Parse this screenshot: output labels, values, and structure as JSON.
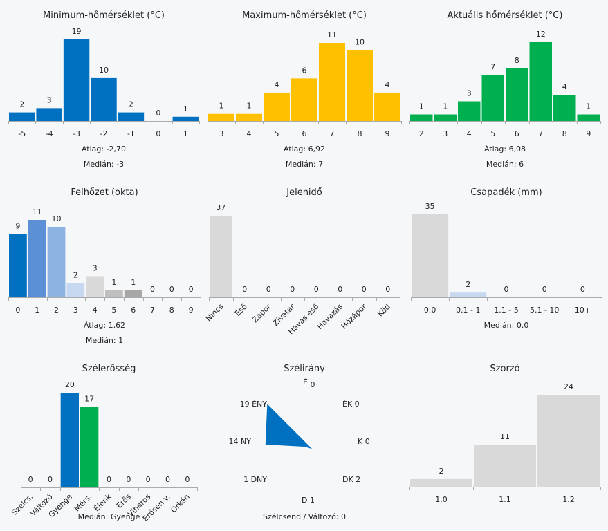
{
  "chart_data": [
    {
      "type": "bar",
      "title": "Minimum-hőmérséklet (°C)",
      "categories": [
        "-5",
        "-4",
        "-3",
        "-2",
        "-1",
        "0",
        "1"
      ],
      "values": [
        2,
        3,
        19,
        10,
        2,
        0,
        1
      ],
      "colors": [
        "#0070c0"
      ],
      "stats": [
        "Átlag: -2,70",
        "Medián: -3"
      ]
    },
    {
      "type": "bar",
      "title": "Maximum-hőmérséklet (°C)",
      "categories": [
        "3",
        "4",
        "5",
        "6",
        "7",
        "8",
        "9"
      ],
      "values": [
        1,
        1,
        4,
        6,
        11,
        10,
        4
      ],
      "colors": [
        "#ffc000"
      ],
      "stats": [
        "Átlag: 6,92",
        "Medián: 7"
      ]
    },
    {
      "type": "bar",
      "title": "Aktuális hőmérséklet (°C)",
      "categories": [
        "2",
        "3",
        "4",
        "5",
        "6",
        "7",
        "8",
        "9"
      ],
      "values": [
        1,
        1,
        3,
        7,
        8,
        12,
        4,
        1
      ],
      "colors": [
        "#00b050"
      ],
      "stats": [
        "Átlag: 6,08",
        "Medián: 6"
      ]
    },
    {
      "type": "bar",
      "title": "Felhőzet (okta)",
      "categories": [
        "0",
        "1",
        "2",
        "3",
        "4",
        "5",
        "6",
        "7",
        "8",
        "9"
      ],
      "values": [
        9,
        11,
        10,
        2,
        3,
        1,
        1,
        0,
        0,
        0
      ],
      "colors": [
        "#0070c0",
        "#5b8fd6",
        "#8db3e2",
        "#c6d9f1",
        "#d9d9d9",
        "#bfbfbf",
        "#a6a6a6",
        "#a6a6a6",
        "#a6a6a6",
        "#a6a6a6"
      ],
      "stats": [
        "Átlag: 1,62",
        "Medián: 1"
      ]
    },
    {
      "type": "bar",
      "title": "Jelenidő",
      "categories": [
        "Nincs",
        "Eső",
        "Zápor",
        "Zivatar",
        "Havas eső",
        "Havazás",
        "Hózápor",
        "Köd"
      ],
      "values": [
        37,
        0,
        0,
        0,
        0,
        0,
        0,
        0
      ],
      "colors": [
        "#d9d9d9"
      ],
      "stats": []
    },
    {
      "type": "bar",
      "title": "Csapadék (mm)",
      "categories": [
        "0.0",
        "0.1 - 1",
        "1.1 - 5",
        "5.1 - 10",
        "10+"
      ],
      "values": [
        35,
        2,
        0,
        0,
        0
      ],
      "colors": [
        "#d9d9d9",
        "#c6d9f1",
        "#d9d9d9",
        "#d9d9d9",
        "#d9d9d9"
      ],
      "stats": [
        "Medián: 0.0"
      ]
    },
    {
      "type": "bar",
      "title": "Szélerősség",
      "categories": [
        "Szélcs.",
        "Változó",
        "Gyenge",
        "Mérs.",
        "Élénk",
        "Erős",
        "Viharos",
        "Erősen v.",
        "Orkán"
      ],
      "values": [
        0,
        0,
        20,
        17,
        0,
        0,
        0,
        0,
        0
      ],
      "colors": [
        "#0070c0",
        "#0070c0",
        "#0070c0",
        "#00b050",
        "#0070c0",
        "#0070c0",
        "#0070c0",
        "#0070c0",
        "#0070c0"
      ],
      "stats": [
        "Medián: Gyenge"
      ]
    },
    {
      "type": "radar",
      "title": "Szélirány",
      "directions": [
        "É",
        "ÉK",
        "K",
        "DK",
        "D",
        "DNY",
        "NY",
        "ÉNY"
      ],
      "values": [
        0,
        0,
        0,
        2,
        1,
        1,
        14,
        19
      ],
      "color": "#0070c0",
      "stats": [
        "Szélcsend / Változó: 0"
      ]
    },
    {
      "type": "bar",
      "title": "Szorzó",
      "categories": [
        "1.0",
        "1.1",
        "1.2"
      ],
      "values": [
        2,
        11,
        24
      ],
      "colors": [
        "#d9d9d9"
      ],
      "stats": []
    }
  ]
}
